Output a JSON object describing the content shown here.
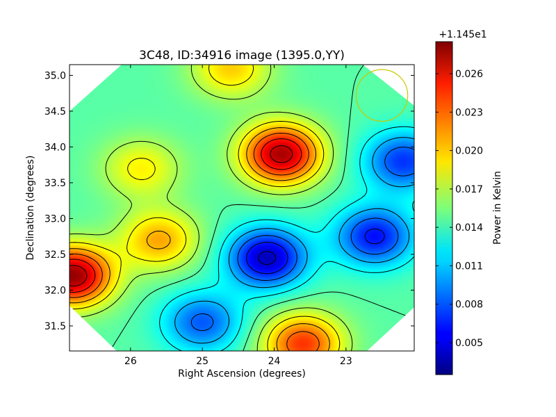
{
  "chart_data": {
    "type": "heatmap",
    "title": "3C48, ID:34916 image (1395.0,YY)",
    "xlabel": "Right Ascension (degrees)",
    "ylabel": "Declination (degrees)",
    "xlim": [
      26.85,
      22.05
    ],
    "ylim": [
      31.15,
      35.15
    ],
    "x_ticks": [
      26,
      25,
      24,
      23
    ],
    "x_tick_labels": [
      "26",
      "25",
      "24",
      "23"
    ],
    "y_ticks": [
      31.5,
      32.0,
      32.5,
      33.0,
      33.5,
      34.0,
      34.5,
      35.0
    ],
    "y_tick_labels": [
      "31.5",
      "32.0",
      "32.5",
      "33.0",
      "33.5",
      "34.0",
      "34.5",
      "35.0"
    ],
    "colorbar": {
      "label": "Power in Kelvin",
      "offset_label": "+1.145e1",
      "range": [
        0.0025,
        0.0285
      ],
      "ticks": [
        0.005,
        0.008,
        0.011,
        0.014,
        0.017,
        0.02,
        0.023,
        0.026
      ],
      "tick_labels": [
        "0.005",
        "0.008",
        "0.011",
        "0.014",
        "0.017",
        "0.020",
        "0.023",
        "0.026"
      ],
      "colormap": "jet"
    },
    "background_value": 0.0145,
    "features": [
      {
        "ra": 26.8,
        "dec": 32.2,
        "value": 0.028,
        "kind": "max"
      },
      {
        "ra": 25.6,
        "dec": 32.7,
        "value": 0.021,
        "kind": "max"
      },
      {
        "ra": 23.9,
        "dec": 33.9,
        "value": 0.0275,
        "kind": "max"
      },
      {
        "ra": 24.6,
        "dec": 35.1,
        "value": 0.02,
        "kind": "max"
      },
      {
        "ra": 23.6,
        "dec": 31.25,
        "value": 0.024,
        "kind": "max"
      },
      {
        "ra": 25.85,
        "dec": 33.7,
        "value": 0.019,
        "kind": "max"
      },
      {
        "ra": 24.1,
        "dec": 32.45,
        "value": 0.004,
        "kind": "min"
      },
      {
        "ra": 22.6,
        "dec": 32.75,
        "value": 0.006,
        "kind": "min"
      },
      {
        "ra": 22.2,
        "dec": 33.8,
        "value": 0.007,
        "kind": "min"
      },
      {
        "ra": 25.0,
        "dec": 31.55,
        "value": 0.008,
        "kind": "min"
      }
    ],
    "contour_levels": [
      0.0045,
      0.0065,
      0.0085,
      0.0105,
      0.0125,
      0.0145,
      0.0165,
      0.0185,
      0.0205,
      0.0225,
      0.0245,
      0.0265
    ],
    "beam_circle": {
      "ra": 22.5,
      "dec": 34.72,
      "radius_deg": 0.36,
      "color": "#c8c800"
    },
    "footprint": "octagon"
  }
}
